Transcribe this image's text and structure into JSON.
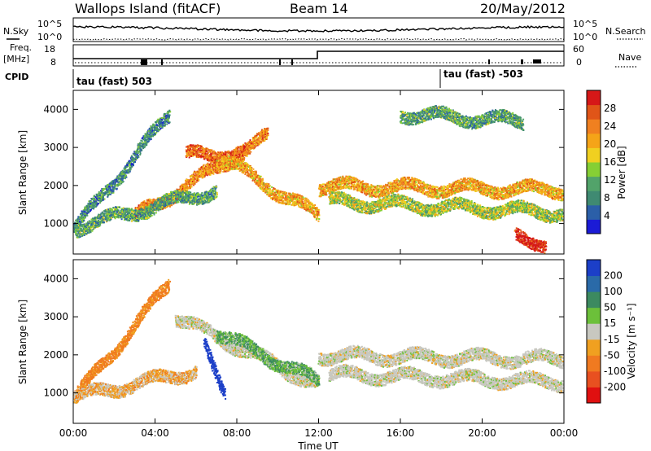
{
  "header": {
    "title": "Wallops Island (fitACF)",
    "beam": "Beam 14",
    "date": "20/May/2012"
  },
  "top_panels": {
    "nsky_label": "N.Sky",
    "nsky_ticks": [
      "10^5",
      "10^0"
    ],
    "nsearch_label": "N.Search",
    "nsearch_ticks": [
      "10^5",
      "10^0"
    ],
    "freq_label": "Freq.",
    "freq_unit": "[MHz]",
    "freq_ticks": [
      "18",
      "8"
    ],
    "nave_label": "Nave",
    "nave_ticks": [
      "60",
      "0"
    ],
    "cpid_label": "CPID",
    "cpid_segments": [
      "tau (fast) 503",
      "tau (fast) -503"
    ]
  },
  "colors": {
    "power_scale": [
      "#1b1bd6",
      "#2b5fa8",
      "#3f8a72",
      "#52a36a",
      "#86cf34",
      "#f0d020",
      "#f5a418",
      "#f08020",
      "#e05518",
      "#d61818"
    ],
    "velocity_scale": [
      "#1c3fc8",
      "#2a6aa8",
      "#3c8a60",
      "#6cc03a",
      "#c8c8c0",
      "#f0a020",
      "#f07a20",
      "#e85020",
      "#e01010"
    ],
    "cpid_line": "#000000"
  },
  "chart_data": [
    {
      "type": "heatmap",
      "panel": "power",
      "ylabel": "Slant Range [km]",
      "yticks": [
        "1000",
        "2000",
        "3000",
        "4000"
      ],
      "ylim": [
        200,
        4500
      ],
      "colorbar_label": "Power [dB]",
      "colorbar_ticks": [
        "28",
        "24",
        "20",
        "16",
        "12",
        "8",
        "4"
      ],
      "colorbar_range": [
        0,
        30
      ],
      "echo_bands": [
        {
          "name": "A",
          "start_hr": 0.0,
          "end_hr": 4.7,
          "range_start_km": 850,
          "range_end_km": 3900,
          "power_db": 8
        },
        {
          "name": "B",
          "start_hr": 3.0,
          "end_hr": 9.5,
          "range_start_km": 1200,
          "range_end_km": 3300,
          "power_db": 22
        },
        {
          "name": "C",
          "start_hr": 5.5,
          "end_hr": 8.5,
          "range_start_km": 2800,
          "range_end_km": 2900,
          "power_db": 24
        },
        {
          "name": "D",
          "start_hr": 7.0,
          "end_hr": 12.0,
          "range_start_km": 2800,
          "range_end_km": 1200,
          "power_db": 20
        },
        {
          "name": "E",
          "start_hr": 0.0,
          "end_hr": 7.0,
          "range_start_km": 900,
          "range_end_km": 1900,
          "power_db": 10
        },
        {
          "name": "F",
          "start_hr": 12.0,
          "end_hr": 24.0,
          "range_start_km": 2000,
          "range_end_km": 1900,
          "power_db": 20
        },
        {
          "name": "G",
          "start_hr": 12.5,
          "end_hr": 24.0,
          "range_start_km": 1600,
          "range_end_km": 1300,
          "power_db": 14
        },
        {
          "name": "H",
          "start_hr": 21.6,
          "end_hr": 23.1,
          "range_start_km": 650,
          "range_end_km": 500,
          "power_db": 29
        },
        {
          "name": "I",
          "start_hr": 16.0,
          "end_hr": 22.0,
          "range_start_km": 3900,
          "range_end_km": 3700,
          "power_db": 10
        }
      ]
    },
    {
      "type": "heatmap",
      "panel": "velocity",
      "ylabel": "Slant Range [km]",
      "yticks": [
        "1000",
        "2000",
        "3000",
        "4000"
      ],
      "ylim": [
        200,
        4500
      ],
      "colorbar_label": "Velocity [m s⁻¹]",
      "colorbar_ticks": [
        "200",
        "100",
        "50",
        "15",
        "-15",
        "-50",
        "-100",
        "-200"
      ],
      "colorbar_range": [
        -250,
        250
      ],
      "xlabel": "Time UT",
      "xticks": [
        "00:00",
        "04:00",
        "08:00",
        "12:00",
        "16:00",
        "20:00",
        "00:00"
      ],
      "xlim": [
        0,
        24
      ],
      "echo_bands": [
        {
          "name": "A",
          "start_hr": 0.0,
          "end_hr": 4.7,
          "range_start_km": 850,
          "range_end_km": 3900,
          "velocity": -40
        },
        {
          "name": "B",
          "start_hr": 5.0,
          "end_hr": 12.0,
          "range_start_km": 3000,
          "range_end_km": 1200,
          "velocity": 0
        },
        {
          "name": "C",
          "start_hr": 6.4,
          "end_hr": 7.4,
          "range_start_km": 2300,
          "range_end_km": 1100,
          "velocity": 220
        },
        {
          "name": "D",
          "start_hr": 7.0,
          "end_hr": 12.0,
          "range_start_km": 2600,
          "range_end_km": 1300,
          "velocity": 30
        },
        {
          "name": "E",
          "start_hr": 12.0,
          "end_hr": 24.0,
          "range_start_km": 2000,
          "range_end_km": 1900,
          "velocity": 0
        },
        {
          "name": "F",
          "start_hr": 12.5,
          "end_hr": 24.0,
          "range_start_km": 1500,
          "range_end_km": 1300,
          "velocity": 0
        },
        {
          "name": "G",
          "start_hr": 0.0,
          "end_hr": 6.0,
          "range_start_km": 900,
          "range_end_km": 1600,
          "velocity": -20
        }
      ]
    }
  ]
}
